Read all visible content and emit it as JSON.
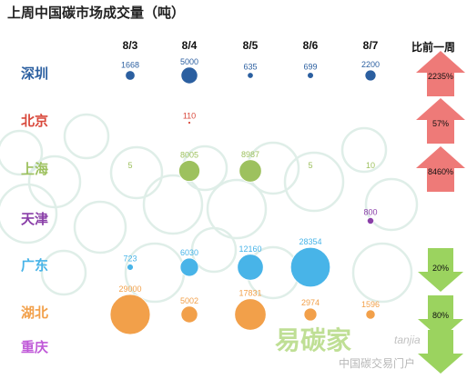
{
  "chart_data": {
    "type": "scatter",
    "title": "上周中国碳市场成交量（吨）",
    "change_header": "比前一周",
    "dates": [
      "8/3",
      "8/4",
      "8/5",
      "8/6",
      "8/7"
    ],
    "cities": [
      {
        "name": "深圳",
        "color": "#2b5fa0",
        "values": [
          1668,
          5000,
          635,
          699,
          2200
        ],
        "labels": [
          "1668",
          "5000",
          "635",
          "699",
          "2200"
        ],
        "change": {
          "direction": "up",
          "label": "2235%"
        }
      },
      {
        "name": "北京",
        "color": "#d9493c",
        "values": [
          null,
          110,
          null,
          null,
          null
        ],
        "labels": [
          "",
          "110",
          "",
          "",
          ""
        ],
        "change": {
          "direction": "up",
          "label": "57%"
        }
      },
      {
        "name": "上海",
        "color": "#9dc15e",
        "values": [
          5,
          8005,
          8987,
          5,
          10
        ],
        "labels": [
          "5",
          "8005",
          "8987",
          "5",
          "10"
        ],
        "change": {
          "direction": "up",
          "label": "8460%"
        }
      },
      {
        "name": "天津",
        "color": "#8a3fa8",
        "values": [
          null,
          null,
          null,
          null,
          800
        ],
        "labels": [
          "",
          "",
          "",
          "",
          "800"
        ],
        "change": null
      },
      {
        "name": "广东",
        "color": "#48b4e8",
        "values": [
          723,
          6030,
          12160,
          28354,
          null
        ],
        "labels": [
          "723",
          "6030",
          "12160",
          "28354",
          ""
        ],
        "change": {
          "direction": "down",
          "label": "20%"
        }
      },
      {
        "name": "湖北",
        "color": "#f2a04a",
        "values": [
          29000,
          5002,
          17831,
          2974,
          1596
        ],
        "labels": [
          "29000",
          "5002",
          "17831",
          "2974",
          "1596"
        ],
        "change": {
          "direction": "down",
          "label": "80%"
        }
      },
      {
        "name": "重庆",
        "color": "#c05ad8",
        "values": [
          null,
          null,
          null,
          null,
          null
        ],
        "labels": [
          "",
          "",
          "",
          "",
          ""
        ],
        "change": {
          "direction": "down",
          "label": ""
        }
      }
    ],
    "colors": {
      "up_arrow": "#ee7a78",
      "down_arrow": "#9bd35f"
    }
  },
  "watermark": {
    "logo_text": "易碳家",
    "logo_latin": "tanjia",
    "subtitle": "中国碳交易门户"
  }
}
